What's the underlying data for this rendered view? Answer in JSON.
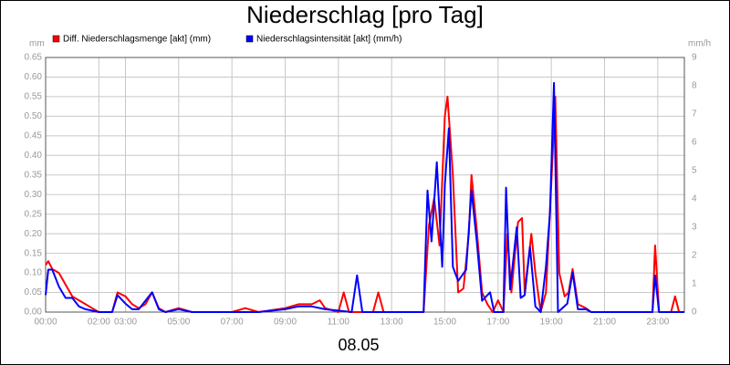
{
  "chart_data": {
    "type": "line",
    "title": "Niederschlag [pro Tag]",
    "xlabel": "08.05",
    "ylabel": "mm",
    "y2label": "mm/h",
    "xlim": [
      0,
      24
    ],
    "xticks": [
      {
        "value": 0,
        "label": "00:00"
      },
      {
        "value": 2,
        "label": "02:00"
      },
      {
        "value": 3,
        "label": "03:00"
      },
      {
        "value": 5,
        "label": "05:00"
      },
      {
        "value": 7,
        "label": "07:00"
      },
      {
        "value": 9,
        "label": "09:00"
      },
      {
        "value": 11,
        "label": "11:00"
      },
      {
        "value": 13,
        "label": "13:00"
      },
      {
        "value": 15,
        "label": "15:00"
      },
      {
        "value": 17,
        "label": "17:00"
      },
      {
        "value": 19,
        "label": "19:00"
      },
      {
        "value": 21,
        "label": "21:00"
      },
      {
        "value": 23,
        "label": "23:00"
      }
    ],
    "ylim": [
      0,
      0.65
    ],
    "yticks": [
      {
        "value": 0,
        "label": "0.00"
      },
      {
        "value": 0.05,
        "label": "0.05"
      },
      {
        "value": 0.1,
        "label": "0.10"
      },
      {
        "value": 0.15,
        "label": "0.15"
      },
      {
        "value": 0.2,
        "label": "0.20"
      },
      {
        "value": 0.25,
        "label": "0.25"
      },
      {
        "value": 0.3,
        "label": "0.30"
      },
      {
        "value": 0.35,
        "label": "0.35"
      },
      {
        "value": 0.4,
        "label": "0.40"
      },
      {
        "value": 0.45,
        "label": "0.45"
      },
      {
        "value": 0.5,
        "label": "0.50"
      },
      {
        "value": 0.55,
        "label": "0.55"
      },
      {
        "value": 0.6,
        "label": "0.60"
      },
      {
        "value": 0.65,
        "label": "0.65"
      }
    ],
    "y2lim": [
      0,
      9
    ],
    "y2ticks": [
      0,
      1,
      2,
      3,
      4,
      5,
      6,
      7,
      8,
      9
    ],
    "grid": true,
    "series": [
      {
        "name": "Diff. Niederschlagsmenge [akt] (mm)",
        "color": "#ff0000",
        "x": [
          0,
          0.1,
          0.25,
          0.5,
          0.75,
          1,
          1.25,
          1.5,
          1.75,
          2,
          2.5,
          2.7,
          3,
          3.25,
          3.5,
          3.75,
          4,
          4.25,
          4.5,
          5,
          5.5,
          6,
          7,
          7.5,
          8,
          9,
          9.5,
          10,
          10.3,
          10.5,
          11,
          11.2,
          11.4,
          12.3,
          12.5,
          12.7,
          14.2,
          14.4,
          14.6,
          14.8,
          15,
          15.1,
          15.3,
          15.5,
          15.7,
          15.9,
          16,
          16.2,
          16.4,
          16.6,
          16.8,
          17,
          17.2,
          17.35,
          17.5,
          17.75,
          17.9,
          18,
          18.25,
          18.4,
          18.6,
          18.8,
          19,
          19.15,
          19.3,
          19.5,
          19.65,
          19.8,
          20,
          20.3,
          20.5,
          22.8,
          22.9,
          23.05,
          23.5,
          23.65,
          23.8,
          24
        ],
        "values": [
          0.12,
          0.13,
          0.11,
          0.1,
          0.07,
          0.04,
          0.03,
          0.02,
          0.01,
          0,
          0,
          0.05,
          0.04,
          0.02,
          0.01,
          0.02,
          0.05,
          0.01,
          0,
          0.01,
          0,
          0,
          0,
          0.01,
          0,
          0.01,
          0.02,
          0.02,
          0.03,
          0.01,
          0,
          0.05,
          0,
          0,
          0.05,
          0,
          0,
          0.22,
          0.29,
          0.17,
          0.5,
          0.55,
          0.35,
          0.05,
          0.06,
          0.2,
          0.35,
          0.21,
          0.05,
          0.02,
          0,
          0.03,
          0,
          0.2,
          0.05,
          0.23,
          0.24,
          0.05,
          0.2,
          0.1,
          0,
          0.05,
          0.33,
          0.55,
          0.1,
          0.04,
          0.05,
          0.11,
          0.02,
          0.01,
          0,
          0,
          0.17,
          0,
          0,
          0.04,
          0,
          0
        ]
      },
      {
        "name": "Niederschlagsintensität [akt] (mm/h)",
        "color": "#0000ff",
        "axis": "y2",
        "x": [
          0,
          0.1,
          0.25,
          0.5,
          0.75,
          1,
          1.25,
          1.5,
          2,
          2.5,
          2.7,
          3,
          3.25,
          3.5,
          4,
          4.25,
          4.5,
          5,
          5.5,
          6,
          7,
          8,
          9,
          9.5,
          10,
          10.5,
          11,
          11.5,
          11.7,
          11.9,
          14.2,
          14.35,
          14.5,
          14.7,
          14.9,
          15,
          15.15,
          15.3,
          15.5,
          15.8,
          16,
          16.2,
          16.4,
          16.7,
          16.85,
          17.2,
          17.3,
          17.45,
          17.7,
          17.85,
          18,
          18.2,
          18.4,
          18.6,
          18.8,
          18.95,
          19.1,
          19.25,
          19.6,
          19.8,
          20,
          20.3,
          20.5,
          22.8,
          22.9,
          23.05,
          24
        ],
        "values": [
          0.6,
          1.5,
          1.5,
          0.9,
          0.5,
          0.5,
          0.2,
          0.1,
          0,
          0,
          0.6,
          0.3,
          0.1,
          0.1,
          0.7,
          0.1,
          0,
          0.1,
          0,
          0,
          0,
          0,
          0.1,
          0.2,
          0.2,
          0.1,
          0.05,
          0,
          1.3,
          0,
          0,
          4.3,
          2.5,
          5.3,
          1.6,
          4.5,
          6.5,
          1.6,
          1.1,
          1.5,
          4.3,
          2.5,
          0.4,
          0.7,
          0,
          0,
          4.4,
          0.8,
          3,
          0.5,
          0.6,
          2.3,
          0.2,
          0,
          1.6,
          3.5,
          8.1,
          0,
          0.3,
          1.4,
          0.1,
          0.1,
          0,
          0,
          1.3,
          0,
          0
        ]
      }
    ]
  }
}
